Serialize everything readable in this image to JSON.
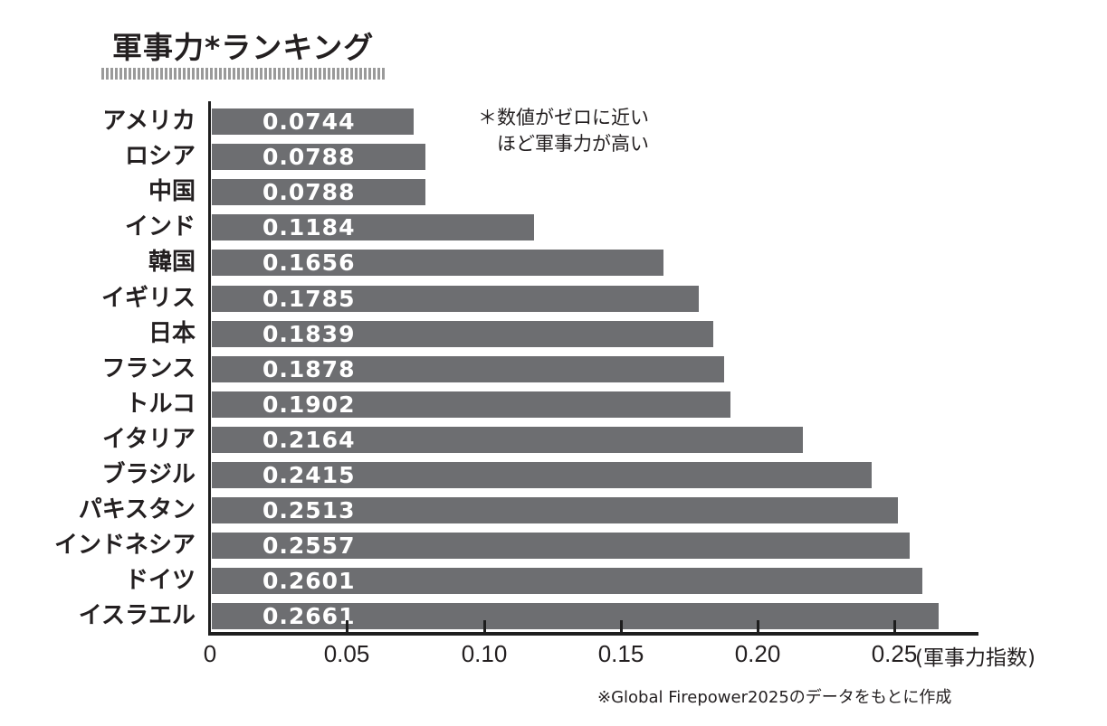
{
  "title": "軍事力*ランキング",
  "note": "＊数値がゼロに近い\n　ほど軍事力が高い",
  "source": "※Global Firepower2025のデータをもとに作成",
  "x_unit_label": "(軍事力指数)",
  "x_ticks": [
    "0",
    "0.05",
    "0.10",
    "0.15",
    "0.20",
    "0.25"
  ],
  "colors": {
    "bar": "#6d6e71",
    "axis": "#1e1e1e",
    "bar_text": "#ffffff"
  },
  "chart_data": {
    "type": "bar",
    "orientation": "horizontal",
    "title": "軍事力*ランキング",
    "xlabel": "(軍事力指数)",
    "ylabel": "",
    "xlim": [
      0,
      0.28
    ],
    "x_ticks": [
      0,
      0.05,
      0.1,
      0.15,
      0.2,
      0.25
    ],
    "grid": false,
    "legend": null,
    "annotations": [
      "＊数値がゼロに近いほど軍事力が高い",
      "※Global Firepower2025のデータをもとに作成"
    ],
    "categories": [
      "アメリカ",
      "ロシア",
      "中国",
      "インド",
      "韓国",
      "イギリス",
      "日本",
      "フランス",
      "トルコ",
      "イタリア",
      "ブラジル",
      "パキスタン",
      "インドネシア",
      "ドイツ",
      "イスラエル"
    ],
    "values": [
      0.0744,
      0.0788,
      0.0788,
      0.1184,
      0.1656,
      0.1785,
      0.1839,
      0.1878,
      0.1902,
      0.2164,
      0.2415,
      0.2513,
      0.2557,
      0.2601,
      0.2661
    ],
    "value_labels": [
      "0.0744",
      "0.0788",
      "0.0788",
      "0.1184",
      "0.1656",
      "0.1785",
      "0.1839",
      "0.1878",
      "0.1902",
      "0.2164",
      "0.2415",
      "0.2513",
      "0.2557",
      "0.2601",
      "0.2661"
    ]
  }
}
